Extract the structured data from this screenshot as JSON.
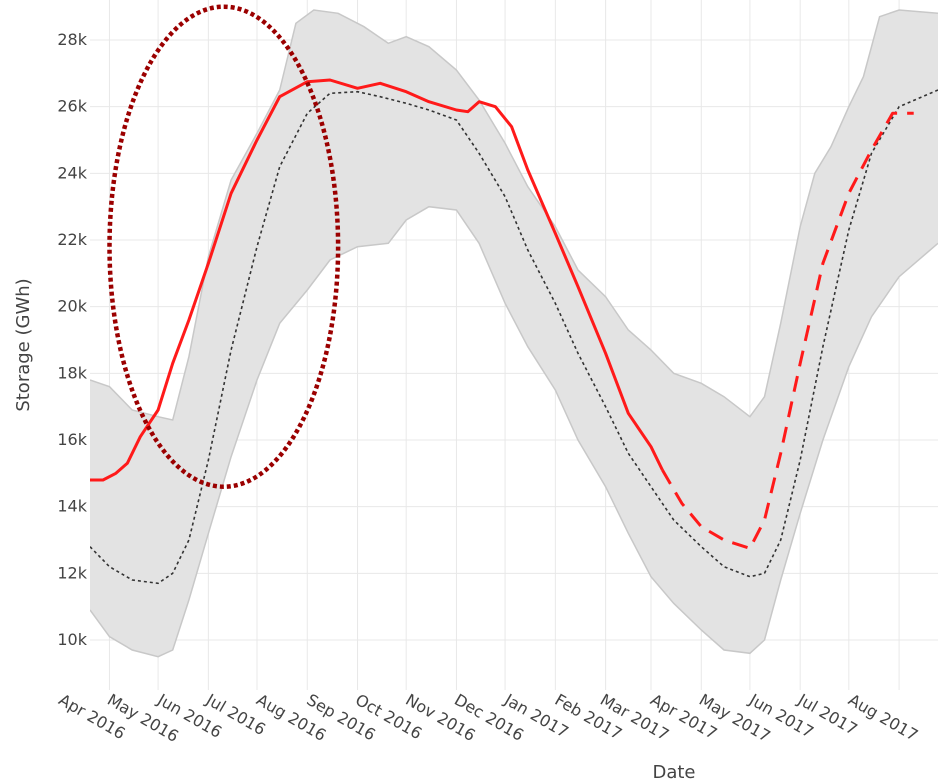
{
  "chart_data": {
    "type": "line",
    "xlabel": "Date",
    "ylabel": "Storage (GWh)",
    "ylim": [
      8500,
      29200
    ],
    "xlim": [
      "2016-03-20",
      "2017-08-25"
    ],
    "grid": true,
    "legend": "none",
    "y_ticks": [
      {
        "value": 10000,
        "label": "10k"
      },
      {
        "value": 12000,
        "label": "12k"
      },
      {
        "value": 14000,
        "label": "14k"
      },
      {
        "value": 16000,
        "label": "16k"
      },
      {
        "value": 18000,
        "label": "18k"
      },
      {
        "value": 20000,
        "label": "20k"
      },
      {
        "value": 22000,
        "label": "22k"
      },
      {
        "value": 24000,
        "label": "24k"
      },
      {
        "value": 26000,
        "label": "26k"
      },
      {
        "value": 28000,
        "label": "28k"
      }
    ],
    "x_ticks": [
      {
        "date": "2016-04-01",
        "label": "Apr 2016"
      },
      {
        "date": "2016-05-01",
        "label": "May 2016"
      },
      {
        "date": "2016-06-01",
        "label": "Jun 2016"
      },
      {
        "date": "2016-07-01",
        "label": "Jul 2016"
      },
      {
        "date": "2016-08-01",
        "label": "Aug 2016"
      },
      {
        "date": "2016-09-01",
        "label": "Sep 2016"
      },
      {
        "date": "2016-10-01",
        "label": "Oct 2016"
      },
      {
        "date": "2016-11-01",
        "label": "Nov 2016"
      },
      {
        "date": "2016-12-01",
        "label": "Dec 2016"
      },
      {
        "date": "2017-01-01",
        "label": "Jan 2017"
      },
      {
        "date": "2017-02-01",
        "label": "Feb 2017"
      },
      {
        "date": "2017-03-01",
        "label": "Mar 2017"
      },
      {
        "date": "2017-04-01",
        "label": "Apr 2017"
      },
      {
        "date": "2017-05-01",
        "label": "May 2017"
      },
      {
        "date": "2017-06-01",
        "label": "Jun 2017"
      },
      {
        "date": "2017-07-01",
        "label": "Jul 2017"
      },
      {
        "date": "2017-08-01",
        "label": "Aug 2017"
      }
    ],
    "band": {
      "color": "#e3e3e3",
      "edge_color": "#c8c8c8",
      "upper": [
        [
          "2016-03-20",
          17800
        ],
        [
          "2016-04-01",
          17600
        ],
        [
          "2016-04-15",
          16900
        ],
        [
          "2016-05-01",
          16700
        ],
        [
          "2016-05-10",
          16600
        ],
        [
          "2016-05-20",
          18500
        ],
        [
          "2016-06-01",
          21500
        ],
        [
          "2016-06-15",
          23800
        ],
        [
          "2016-07-01",
          25200
        ],
        [
          "2016-07-15",
          26500
        ],
        [
          "2016-07-25",
          28500
        ],
        [
          "2016-08-05",
          28900
        ],
        [
          "2016-08-20",
          28800
        ],
        [
          "2016-09-05",
          28400
        ],
        [
          "2016-09-20",
          27900
        ],
        [
          "2016-10-01",
          28100
        ],
        [
          "2016-10-15",
          27800
        ],
        [
          "2016-11-01",
          27100
        ],
        [
          "2016-11-15",
          26200
        ],
        [
          "2016-12-01",
          24900
        ],
        [
          "2016-12-15",
          23600
        ],
        [
          "2017-01-01",
          22400
        ],
        [
          "2017-01-15",
          21100
        ],
        [
          "2017-02-01",
          20300
        ],
        [
          "2017-02-15",
          19300
        ],
        [
          "2017-03-01",
          18700
        ],
        [
          "2017-03-15",
          18000
        ],
        [
          "2017-04-01",
          17700
        ],
        [
          "2017-04-15",
          17300
        ],
        [
          "2017-05-01",
          16700
        ],
        [
          "2017-05-10",
          17300
        ],
        [
          "2017-05-20",
          19500
        ],
        [
          "2017-06-01",
          22400
        ],
        [
          "2017-06-10",
          24000
        ],
        [
          "2017-06-20",
          24800
        ],
        [
          "2017-07-01",
          26000
        ],
        [
          "2017-07-10",
          26900
        ],
        [
          "2017-07-20",
          28700
        ],
        [
          "2017-08-01",
          28900
        ],
        [
          "2017-08-25",
          28800
        ]
      ],
      "lower": [
        [
          "2016-03-20",
          10900
        ],
        [
          "2016-04-01",
          10100
        ],
        [
          "2016-04-15",
          9700
        ],
        [
          "2016-05-01",
          9500
        ],
        [
          "2016-05-10",
          9700
        ],
        [
          "2016-05-20",
          11200
        ],
        [
          "2016-06-01",
          13200
        ],
        [
          "2016-06-15",
          15500
        ],
        [
          "2016-07-01",
          17800
        ],
        [
          "2016-07-15",
          19500
        ],
        [
          "2016-08-01",
          20500
        ],
        [
          "2016-08-15",
          21400
        ],
        [
          "2016-09-01",
          21800
        ],
        [
          "2016-09-20",
          21900
        ],
        [
          "2016-10-01",
          22600
        ],
        [
          "2016-10-15",
          23000
        ],
        [
          "2016-11-01",
          22900
        ],
        [
          "2016-11-15",
          21900
        ],
        [
          "2016-12-01",
          20100
        ],
        [
          "2016-12-15",
          18800
        ],
        [
          "2017-01-01",
          17500
        ],
        [
          "2017-01-15",
          16000
        ],
        [
          "2017-02-01",
          14600
        ],
        [
          "2017-02-15",
          13200
        ],
        [
          "2017-03-01",
          11900
        ],
        [
          "2017-03-15",
          11100
        ],
        [
          "2017-04-01",
          10300
        ],
        [
          "2017-04-15",
          9700
        ],
        [
          "2017-05-01",
          9600
        ],
        [
          "2017-05-10",
          10000
        ],
        [
          "2017-05-20",
          11800
        ],
        [
          "2017-06-01",
          13800
        ],
        [
          "2017-06-15",
          16000
        ],
        [
          "2017-07-01",
          18200
        ],
        [
          "2017-07-15",
          19700
        ],
        [
          "2017-08-01",
          20900
        ],
        [
          "2017-08-25",
          21900
        ]
      ]
    },
    "series": [
      {
        "color": "#333333",
        "dash": "dotted",
        "points": [
          [
            "2016-03-20",
            12800
          ],
          [
            "2016-04-01",
            12200
          ],
          [
            "2016-04-15",
            11800
          ],
          [
            "2016-05-01",
            11700
          ],
          [
            "2016-05-10",
            12000
          ],
          [
            "2016-05-20",
            13000
          ],
          [
            "2016-06-01",
            15400
          ],
          [
            "2016-06-15",
            18700
          ],
          [
            "2016-07-01",
            21800
          ],
          [
            "2016-07-15",
            24200
          ],
          [
            "2016-08-01",
            25800
          ],
          [
            "2016-08-15",
            26400
          ],
          [
            "2016-09-01",
            26450
          ],
          [
            "2016-09-15",
            26300
          ],
          [
            "2016-10-01",
            26100
          ],
          [
            "2016-10-15",
            25900
          ],
          [
            "2016-11-01",
            25600
          ],
          [
            "2016-11-15",
            24600
          ],
          [
            "2016-12-01",
            23300
          ],
          [
            "2016-12-15",
            21700
          ],
          [
            "2017-01-01",
            20100
          ],
          [
            "2017-01-15",
            18600
          ],
          [
            "2017-02-01",
            17000
          ],
          [
            "2017-02-15",
            15600
          ],
          [
            "2017-03-01",
            14600
          ],
          [
            "2017-03-15",
            13600
          ],
          [
            "2017-04-01",
            12800
          ],
          [
            "2017-04-15",
            12200
          ],
          [
            "2017-05-01",
            11900
          ],
          [
            "2017-05-10",
            12000
          ],
          [
            "2017-05-20",
            13000
          ],
          [
            "2017-06-01",
            15400
          ],
          [
            "2017-06-15",
            18800
          ],
          [
            "2017-07-01",
            22300
          ],
          [
            "2017-07-15",
            24600
          ],
          [
            "2017-08-01",
            26000
          ],
          [
            "2017-08-25",
            26500
          ]
        ]
      },
      {
        "color": "#ff1a1a",
        "dash": "solid",
        "points": [
          [
            "2016-03-20",
            14800
          ],
          [
            "2016-03-28",
            14800
          ],
          [
            "2016-04-05",
            15000
          ],
          [
            "2016-04-12",
            15300
          ],
          [
            "2016-04-20",
            16100
          ],
          [
            "2016-05-01",
            16900
          ],
          [
            "2016-05-10",
            18300
          ],
          [
            "2016-05-20",
            19600
          ],
          [
            "2016-06-01",
            21300
          ],
          [
            "2016-06-15",
            23400
          ],
          [
            "2016-07-01",
            25000
          ],
          [
            "2016-07-15",
            26300
          ],
          [
            "2016-08-01",
            26750
          ],
          [
            "2016-08-15",
            26800
          ],
          [
            "2016-09-01",
            26550
          ],
          [
            "2016-09-15",
            26700
          ],
          [
            "2016-10-01",
            26450
          ],
          [
            "2016-10-15",
            26150
          ],
          [
            "2016-11-01",
            25900
          ],
          [
            "2016-11-08",
            25850
          ],
          [
            "2016-11-15",
            26150
          ],
          [
            "2016-11-25",
            26000
          ],
          [
            "2016-12-05",
            25400
          ],
          [
            "2016-12-15",
            24100
          ],
          [
            "2017-01-01",
            22200
          ],
          [
            "2017-01-15",
            20600
          ],
          [
            "2017-02-01",
            18600
          ],
          [
            "2017-02-15",
            16800
          ],
          [
            "2017-03-01",
            15800
          ],
          [
            "2017-03-08",
            15100
          ]
        ]
      },
      {
        "color": "#ff1a1a",
        "dash": "dashed",
        "points": [
          [
            "2017-03-08",
            15100
          ],
          [
            "2017-03-20",
            14100
          ],
          [
            "2017-04-01",
            13400
          ],
          [
            "2017-04-15",
            13000
          ],
          [
            "2017-05-01",
            12750
          ],
          [
            "2017-05-10",
            13600
          ],
          [
            "2017-05-20",
            15600
          ],
          [
            "2017-06-01",
            18300
          ],
          [
            "2017-06-15",
            21300
          ],
          [
            "2017-07-01",
            23400
          ],
          [
            "2017-07-15",
            24700
          ],
          [
            "2017-07-28",
            25800
          ],
          [
            "2017-08-10",
            25800
          ]
        ]
      }
    ],
    "annotations": [
      {
        "type": "ellipse",
        "color": "#9b0000",
        "style": "dotted",
        "x_range": [
          "2016-04-01",
          "2016-08-20"
        ],
        "y_range": [
          14600,
          29000
        ]
      }
    ]
  }
}
